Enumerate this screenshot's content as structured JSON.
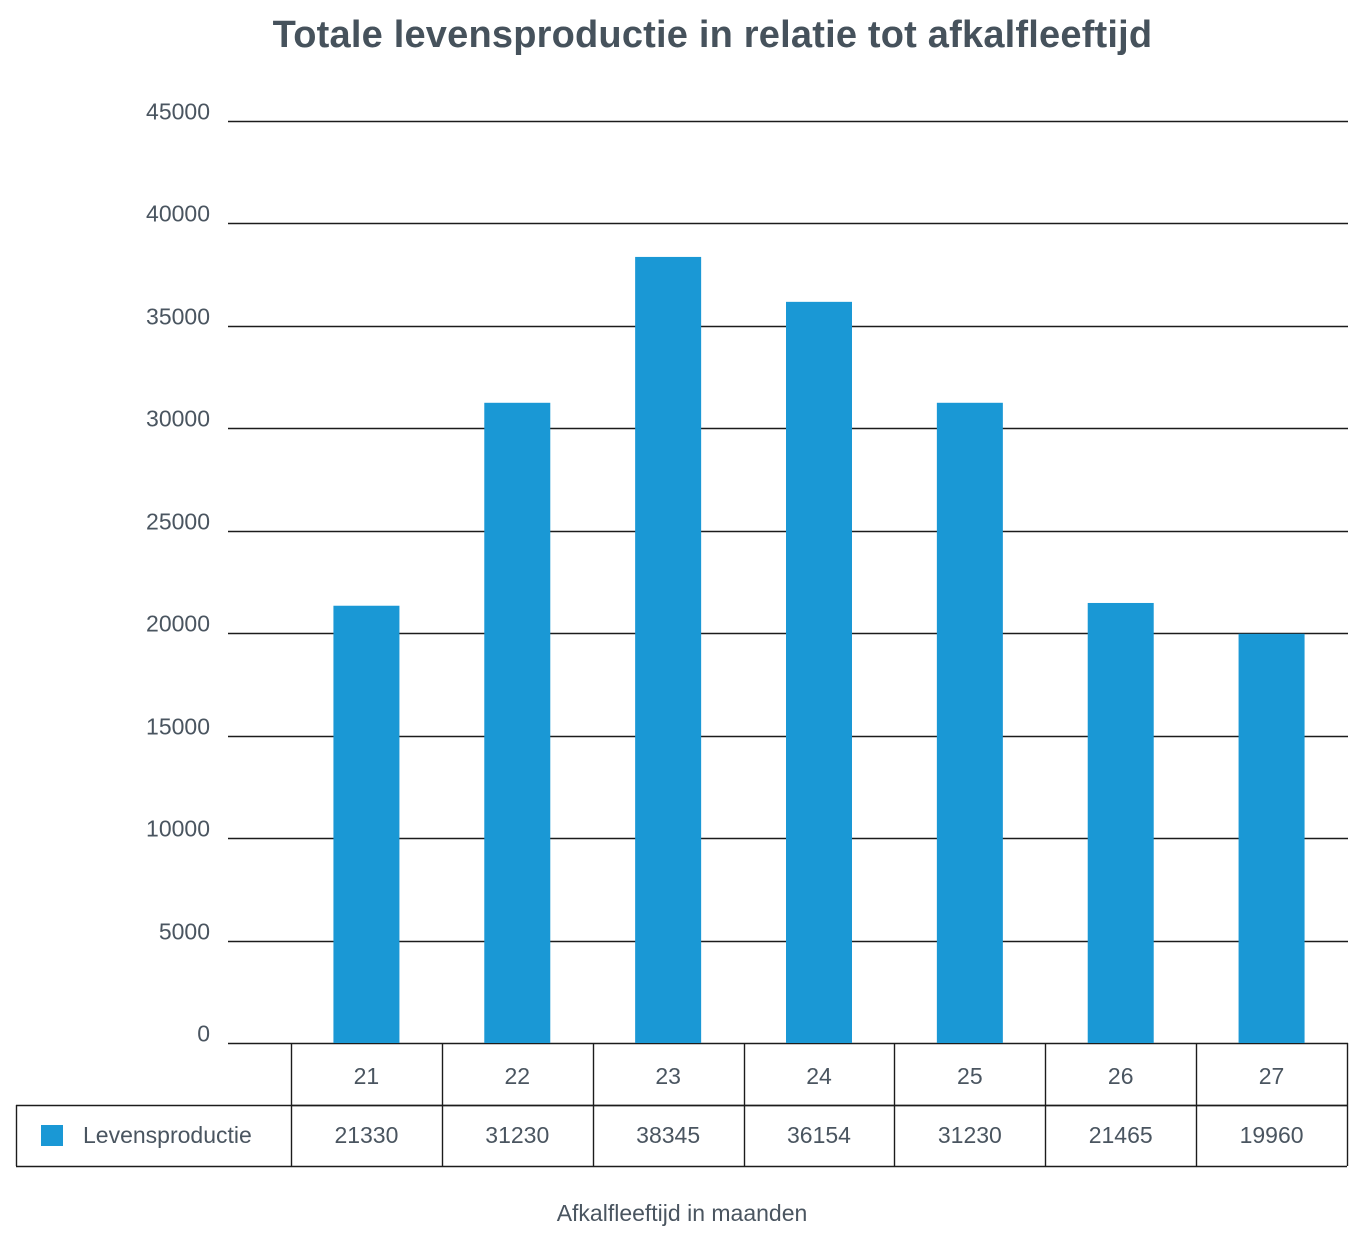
{
  "chart_data": {
    "type": "bar",
    "title": "Totale levensproductie in relatie tot afkalfleeftijd",
    "xlabel": "Afkalfleeftijd in maanden",
    "ylabel": "",
    "categories": [
      "21",
      "22",
      "23",
      "24",
      "25",
      "26",
      "27"
    ],
    "series": [
      {
        "name": "Levensproductie",
        "values": [
          21330,
          31230,
          38345,
          36154,
          31230,
          21465,
          19960
        ],
        "color": "#1a98d5"
      }
    ],
    "yticks": [
      "0",
      "5000",
      "10000",
      "15000",
      "20000",
      "25000",
      "30000",
      "35000",
      "40000",
      "45000"
    ],
    "ylim": [
      0,
      45000
    ],
    "grid": true,
    "legend": "data-table",
    "data_table": {
      "series_label": "Levensproductie",
      "values": [
        "21330",
        "31230",
        "38345",
        "36154",
        "31230",
        "21465",
        "19960"
      ]
    }
  }
}
